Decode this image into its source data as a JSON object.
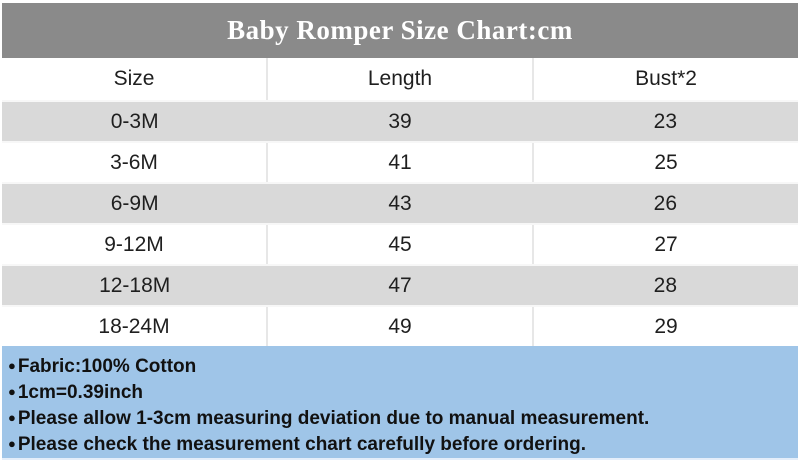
{
  "title": "Baby Romper Size Chart:cm",
  "table": {
    "columns": [
      "Size",
      "Length",
      "Bust*2"
    ],
    "rows": [
      {
        "size": "0-3M",
        "length": "39",
        "bust": "23"
      },
      {
        "size": "3-6M",
        "length": "41",
        "bust": "25"
      },
      {
        "size": "6-9M",
        "length": "43",
        "bust": "26"
      },
      {
        "size": "9-12M",
        "length": "45",
        "bust": "27"
      },
      {
        "size": "12-18M",
        "length": "47",
        "bust": "28"
      },
      {
        "size": "18-24M",
        "length": "49",
        "bust": "29"
      }
    ]
  },
  "notes": {
    "bullet": "●",
    "items": [
      "Fabric:100% Cotton",
      "1cm=0.39inch",
      "Please allow 1-3cm measuring deviation due to manual measurement.",
      "Please check the measurement chart carefully before ordering."
    ]
  },
  "colors": {
    "title_bar_bg": "#8a8a8a",
    "title_text": "#ffffff",
    "row_alt_bg": "#d9d9d9",
    "row_bg": "#ffffff",
    "notes_bg": "#9fc5e8",
    "text": "#1f1f1f",
    "divider": "#e7e7e7"
  }
}
